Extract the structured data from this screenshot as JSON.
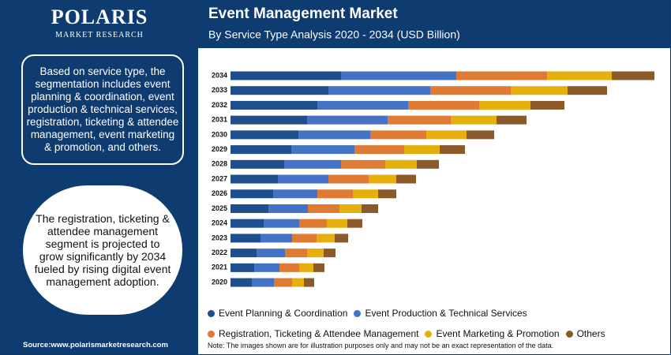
{
  "brand": {
    "name": "POLARIS",
    "tagline": "MARKET RESEARCH"
  },
  "panel": {
    "summary": "Based on service type, the segmentation includes event planning & coordination, event production & technical services, registration, ticketing & attendee management, event marketing & promotion, and others.",
    "highlight": "The registration, ticketing & attendee management segment is projected to grow significantly by 2034 fueled by rising digital event management adoption.",
    "source": "Source:www.polarismarketresearch.com"
  },
  "note": "Note: The images shown are for illustration purposes only and may not be an exact representation of the data.",
  "chart_data": {
    "type": "stacked-bar-horizontal",
    "title": "Event Management Market",
    "subtitle": "By Service Type Analysis 2020 - 2034 (USD Billion)",
    "categories": [
      "2034",
      "2033",
      "2032",
      "2031",
      "2030",
      "2029",
      "2028",
      "2027",
      "2026",
      "2025",
      "2024",
      "2023",
      "2022",
      "2021",
      "2020"
    ],
    "series": [
      {
        "name": "Event Planning & Coordination",
        "color": "#1f4e8c",
        "values": [
          140,
          124,
          110,
          97,
          86,
          77,
          68,
          60,
          54,
          48,
          42,
          38,
          33,
          30,
          27
        ]
      },
      {
        "name": "Event Production & Technical Services",
        "color": "#4472c4",
        "values": [
          146,
          129,
          115,
          102,
          91,
          80,
          72,
          64,
          56,
          50,
          45,
          40,
          36,
          32,
          28
        ]
      },
      {
        "name": "Registration, Ticketing & Attendee Management",
        "color": "#df7a35",
        "values": [
          115,
          102,
          90,
          80,
          71,
          63,
          56,
          51,
          45,
          40,
          35,
          31,
          28,
          25,
          23
        ]
      },
      {
        "name": "Event Marketing & Promotion",
        "color": "#e6b00c",
        "values": [
          82,
          72,
          65,
          58,
          51,
          45,
          40,
          35,
          32,
          28,
          26,
          23,
          21,
          18,
          15
        ]
      },
      {
        "name": "Others",
        "color": "#8b5a2b",
        "values": [
          54,
          50,
          43,
          38,
          35,
          32,
          28,
          25,
          23,
          21,
          19,
          17,
          15,
          14,
          13
        ]
      }
    ]
  }
}
